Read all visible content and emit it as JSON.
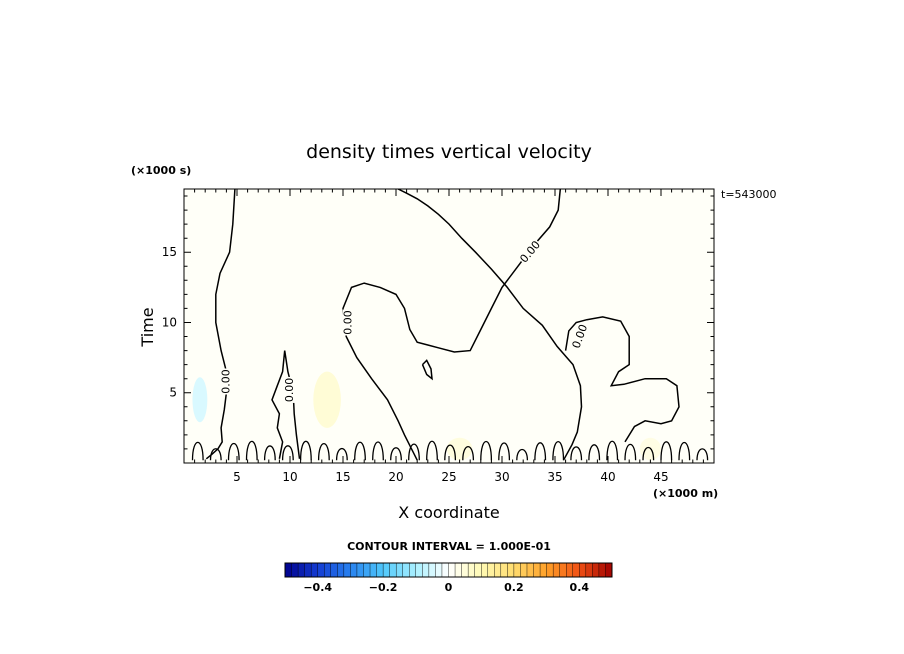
{
  "chart_data": {
    "type": "heatmap",
    "title": "density times vertical velocity",
    "xlabel": "X coordinate",
    "ylabel": "Time",
    "x_units": "(×1000 m)",
    "y_units": "(×1000 s)",
    "timestamp": "t=543000",
    "xlim": [
      0,
      50
    ],
    "ylim": [
      0,
      19.5
    ],
    "x_ticks": [
      "5",
      "10",
      "15",
      "20",
      "25",
      "30",
      "35",
      "40",
      "45"
    ],
    "y_ticks": [
      "5",
      "10",
      "15"
    ],
    "contour_interval_label": "CONTOUR INTERVAL = 1.000E-01",
    "contour_label": "0.00",
    "colorbar": {
      "min": -0.5,
      "max": 0.5,
      "step": 0.02,
      "tick_labels": [
        "−0.4",
        "−0.2",
        "0",
        "0.2",
        "0.4"
      ],
      "tick_values": [
        -0.4,
        -0.2,
        0,
        0.2,
        0.4
      ]
    },
    "background_value": 0.01,
    "anomalies": [
      {
        "x": 1.5,
        "y": 4.5,
        "sx": 0.7,
        "sy": 1.6,
        "value": -0.05
      },
      {
        "x": 13.5,
        "y": 4.5,
        "sx": 1.3,
        "sy": 2.0,
        "value": 0.06
      },
      {
        "x": 26.0,
        "y": 1.0,
        "sx": 1.2,
        "sy": 0.8,
        "value": 0.05
      },
      {
        "x": 44.0,
        "y": 1.0,
        "sx": 1.0,
        "sy": 0.8,
        "value": 0.04
      }
    ],
    "contours": [
      [
        [
          4.8,
          19.5
        ],
        [
          4.6,
          17.0
        ],
        [
          4.3,
          15.0
        ],
        [
          3.4,
          13.5
        ],
        [
          3.0,
          12.0
        ],
        [
          3.0,
          10.0
        ],
        [
          3.5,
          8.0
        ],
        [
          4.0,
          6.5
        ],
        [
          4.0,
          5.0
        ],
        [
          3.8,
          3.8
        ],
        [
          3.5,
          2.5
        ],
        [
          3.6,
          1.5
        ],
        [
          3.2,
          1.0
        ],
        [
          2.6,
          0.6
        ],
        [
          2.1,
          0.3
        ]
      ],
      [
        [
          9.0,
          0.3
        ],
        [
          9.3,
          1.5
        ],
        [
          8.8,
          2.5
        ],
        [
          9.0,
          3.5
        ],
        [
          8.3,
          4.5
        ],
        [
          8.8,
          5.5
        ],
        [
          9.3,
          6.5
        ],
        [
          9.5,
          8.0
        ],
        [
          9.8,
          6.5
        ],
        [
          10.3,
          5.0
        ],
        [
          10.4,
          3.5
        ],
        [
          10.6,
          2.0
        ],
        [
          10.9,
          0.3
        ]
      ],
      [
        [
          35.8,
          0.2
        ],
        [
          36.6,
          1.3
        ],
        [
          37.1,
          2.2
        ],
        [
          37.5,
          4.0
        ],
        [
          37.4,
          5.5
        ],
        [
          36.7,
          7.0
        ],
        [
          35.2,
          8.3
        ],
        [
          33.8,
          9.8
        ],
        [
          32.0,
          11.0
        ],
        [
          30.5,
          12.5
        ],
        [
          29.0,
          13.8
        ],
        [
          27.5,
          15.0
        ],
        [
          26.2,
          16.0
        ],
        [
          25.0,
          17.0
        ],
        [
          24.0,
          17.7
        ],
        [
          23.0,
          18.3
        ],
        [
          22.0,
          18.8
        ],
        [
          21.0,
          19.2
        ],
        [
          20.2,
          19.5
        ]
      ],
      [
        [
          35.5,
          19.5
        ],
        [
          35.3,
          18.0
        ],
        [
          34.5,
          16.8
        ],
        [
          33.0,
          15.5
        ],
        [
          31.5,
          14.0
        ],
        [
          30.0,
          12.5
        ],
        [
          29.0,
          11.0
        ],
        [
          28.0,
          9.5
        ],
        [
          27.0,
          8.0
        ],
        [
          25.5,
          7.9
        ],
        [
          24.0,
          8.2
        ],
        [
          23.0,
          8.4
        ],
        [
          22.0,
          8.6
        ],
        [
          21.3,
          9.5
        ],
        [
          20.8,
          11.0
        ],
        [
          20.0,
          12.0
        ],
        [
          18.5,
          12.5
        ],
        [
          17.0,
          12.8
        ],
        [
          15.8,
          12.5
        ],
        [
          15.0,
          11.0
        ],
        [
          15.3,
          9.0
        ],
        [
          16.3,
          7.5
        ],
        [
          17.7,
          6.0
        ],
        [
          19.2,
          4.5
        ],
        [
          20.2,
          3.0
        ],
        [
          20.8,
          2.0
        ],
        [
          21.6,
          0.8
        ],
        [
          22.0,
          0.2
        ]
      ],
      [
        [
          22.5,
          7.0
        ],
        [
          22.9,
          6.3
        ],
        [
          23.4,
          6.0
        ],
        [
          23.3,
          6.7
        ],
        [
          22.9,
          7.3
        ],
        [
          22.5,
          7.0
        ]
      ],
      [
        [
          36.0,
          8.0
        ],
        [
          36.3,
          9.4
        ],
        [
          37.0,
          10.0
        ],
        [
          38.0,
          10.2
        ],
        [
          39.5,
          10.4
        ],
        [
          41.2,
          10.1
        ],
        [
          42.0,
          9.0
        ],
        [
          42.0,
          7.0
        ],
        [
          41.0,
          6.5
        ],
        [
          40.3,
          5.5
        ],
        [
          41.5,
          5.6
        ],
        [
          43.5,
          6.0
        ],
        [
          45.5,
          6.0
        ],
        [
          46.5,
          5.5
        ],
        [
          46.7,
          4.0
        ],
        [
          46.0,
          3.0
        ],
        [
          45.0,
          2.8
        ],
        [
          43.5,
          3.0
        ],
        [
          42.5,
          2.6
        ],
        [
          41.6,
          1.5
        ]
      ]
    ]
  }
}
